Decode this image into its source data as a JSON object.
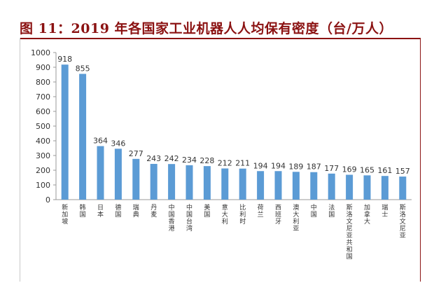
{
  "title": "图 11：2019 年各国家工业机器人人均保有密度（台/万人）",
  "colors": {
    "bar": "#5b9bd5",
    "title": "#8b1212",
    "axis": "#9a9a9a",
    "text": "#333333"
  },
  "chart_data": {
    "type": "bar",
    "title": "图 11：2019 年各国家工业机器人人均保有密度（台/万人）",
    "xlabel": "",
    "ylabel": "",
    "ylim": [
      0,
      1000
    ],
    "yticks": [
      0,
      100,
      200,
      300,
      400,
      500,
      600,
      700,
      800,
      900,
      1000
    ],
    "grid": false,
    "legend": "none",
    "categories": [
      "新加坡",
      "韩国",
      "日本",
      "德国",
      "瑞典",
      "丹麦",
      "中国香港",
      "中国台湾",
      "美国",
      "意大利",
      "比利时",
      "荷兰",
      "西班牙",
      "澳大利亚",
      "中国",
      "法国",
      "斯洛文尼亚共和国",
      "加拿大",
      "瑞士",
      "斯洛文尼亚"
    ],
    "values": [
      918,
      855,
      364,
      346,
      277,
      243,
      242,
      234,
      228,
      212,
      211,
      194,
      194,
      189,
      187,
      177,
      169,
      165,
      161,
      157
    ]
  }
}
